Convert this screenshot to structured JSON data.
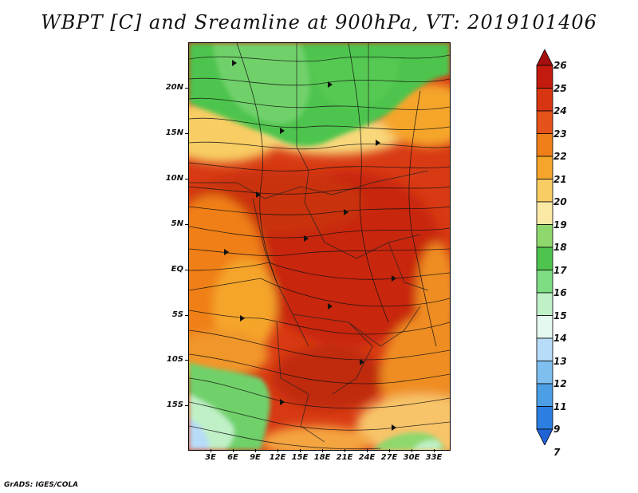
{
  "title": "WBPT [C] and Sreamline at 900hPa, VT: 2019101406",
  "footer": "GrADS: IGES/COLA",
  "axes": {
    "y_ticks": [
      "20N",
      "15N",
      "10N",
      "5N",
      "EQ",
      "5S",
      "10S",
      "15S"
    ],
    "x_ticks": [
      "3E",
      "6E",
      "9E",
      "12E",
      "15E",
      "18E",
      "21E",
      "24E",
      "27E",
      "30E",
      "33E"
    ]
  },
  "colorbar": {
    "labels": [
      "26",
      "25",
      "24",
      "23",
      "22",
      "21",
      "20",
      "19",
      "18",
      "17",
      "16",
      "15",
      "14",
      "13",
      "12",
      "11",
      "9",
      "7"
    ],
    "colors": [
      "#a50f0f",
      "#c41a0d",
      "#d83612",
      "#e5521a",
      "#ef7f19",
      "#f5a52b",
      "#f8cd63",
      "#fbeaa6",
      "#8fd86d",
      "#4ec44e",
      "#7edc82",
      "#bff0c6",
      "#e4f9ef",
      "#b7dcf7",
      "#7fbff0",
      "#4c9ee5",
      "#2b7fe0",
      "#1f63d6"
    ]
  },
  "map_fields": {
    "units": "C",
    "level": "900hPa",
    "valid_time": "2019101406"
  }
}
